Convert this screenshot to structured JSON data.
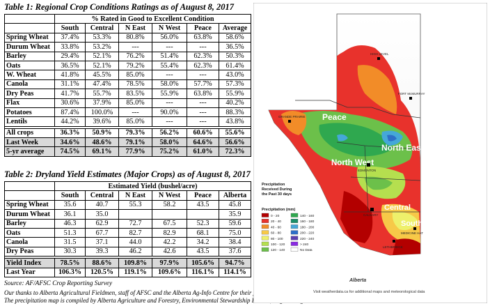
{
  "table1": {
    "title": "Table 1: Regional Crop Conditions Ratings as of August 8, 2017",
    "group_header": "% Rated in Good to Excellent Condition",
    "columns": [
      "South",
      "Central",
      "N East",
      "N West",
      "Peace",
      "Average"
    ],
    "rows": [
      {
        "crop": "Spring Wheat",
        "values": [
          "37.4%",
          "53.3%",
          "80.8%",
          "56.0%",
          "63.8%",
          "58.6%"
        ]
      },
      {
        "crop": "Durum Wheat",
        "values": [
          "33.8%",
          "53.2%",
          "---",
          "---",
          "---",
          "36.5%"
        ]
      },
      {
        "crop": "Barley",
        "values": [
          "29.4%",
          "52.1%",
          "76.2%",
          "51.4%",
          "62.3%",
          "50.3%"
        ]
      },
      {
        "crop": "Oats",
        "values": [
          "36.5%",
          "52.1%",
          "79.2%",
          "55.4%",
          "62.3%",
          "61.4%"
        ]
      },
      {
        "crop": "W. Wheat",
        "values": [
          "41.8%",
          "45.5%",
          "85.0%",
          "---",
          "---",
          "43.0%"
        ]
      },
      {
        "crop": "Canola",
        "values": [
          "31.1%",
          "47.4%",
          "78.5%",
          "58.0%",
          "57.7%",
          "57.3%"
        ]
      },
      {
        "crop": "Dry Peas",
        "values": [
          "41.7%",
          "55.7%",
          "83.5%",
          "55.9%",
          "63.8%",
          "55.9%"
        ]
      },
      {
        "crop": "Flax",
        "values": [
          "30.6%",
          "37.9%",
          "85.0%",
          "---",
          "---",
          "40.2%"
        ]
      },
      {
        "crop": "Potatoes",
        "values": [
          "87.4%",
          "100.0%",
          "---",
          "90.0%",
          "---",
          "88.3%"
        ]
      },
      {
        "crop": "Lentils",
        "values": [
          "44.2%",
          "39.6%",
          "85.0%",
          "---",
          "---",
          "43.8%"
        ]
      }
    ],
    "summary": [
      {
        "crop": "All crops",
        "values": [
          "36.3%",
          "50.9%",
          "79.3%",
          "56.2%",
          "60.6%",
          "55.6%"
        ],
        "shaded": false
      },
      {
        "crop": "Last Week",
        "values": [
          "34.6%",
          "48.6%",
          "79.1%",
          "58.0%",
          "64.6%",
          "56.6%"
        ],
        "shaded": true
      },
      {
        "crop": "5-yr average",
        "values": [
          "74.5%",
          "69.1%",
          "77.9%",
          "75.2%",
          "61.0%",
          "72.3%"
        ],
        "shaded": true
      }
    ]
  },
  "table2": {
    "title": "Table 2: Dryland Yield Estimates (Major Crops) as of August 8, 2017",
    "group_header": "Estimated Yield (bushel/acre)",
    "columns": [
      "South",
      "Central",
      "N East",
      "N West",
      "Peace",
      "Alberta"
    ],
    "rows": [
      {
        "crop": "Spring Wheat",
        "values": [
          "35.6",
          "40.7",
          "55.3",
          "58.2",
          "43.5",
          "45.8"
        ]
      },
      {
        "crop": "Durum Wheat",
        "values": [
          "36.1",
          "35.0",
          "",
          "",
          "",
          "35.9"
        ]
      },
      {
        "crop": "Barley",
        "values": [
          "46.3",
          "62.9",
          "72.7",
          "67.5",
          "52.3",
          "59.6"
        ]
      },
      {
        "crop": "Oats",
        "values": [
          "51.3",
          "67.7",
          "82.7",
          "82.9",
          "68.1",
          "75.0"
        ]
      },
      {
        "crop": "Canola",
        "values": [
          "31.5",
          "37.1",
          "44.0",
          "42.2",
          "34.2",
          "38.4"
        ]
      },
      {
        "crop": "Dry Peas",
        "values": [
          "30.3",
          "39.3",
          "46.2",
          "42.6",
          "43.5",
          "37.6"
        ]
      }
    ],
    "summary": [
      {
        "crop": "Yield Index",
        "values": [
          "78.5%",
          "88.6%",
          "109.8%",
          "97.9%",
          "105.6%",
          "94.7%"
        ],
        "shaded": true
      },
      {
        "crop": "Last Year",
        "values": [
          "106.3%",
          "120.5%",
          "119.1%",
          "109.6%",
          "116.1%",
          "114.1%"
        ],
        "shaded": false
      }
    ]
  },
  "footer": {
    "source": "Source: AF/AFSC Crop Reporting Survey",
    "thanks_line1": "Our thanks to Alberta Agricultural Fieldmen, staff of AFSC and the Alberta Ag-Info Centre for their partnership and contribution to the Alberta Crop Reporting Program.",
    "thanks_line2": "The precipitation map is compiled by Alberta Agriculture and Forestry, Environmental Stewardship Branch, Engineering and Climate Services Section."
  },
  "map": {
    "region_labels": {
      "peace": "Peace",
      "north_east": "North East",
      "north_west": "North West",
      "central": "Central",
      "south": "South"
    },
    "cities": {
      "high_level": "HIGH LEVEL",
      "fort_mcmurray": "FORT McMURRAY",
      "grande_prairie": "GRANDE PRAIRIE",
      "edmonton": "EDMONTON",
      "calgary": "CALGARY",
      "lethbridge": "LETHBRIDGE",
      "medicine_hat": "MEDICINE HAT"
    },
    "title_line1": "Precipitation",
    "title_line2": "Received During",
    "title_line3": "the Past 30 days",
    "legend_title": "Precipitation (mm)",
    "legend": [
      {
        "label": "0 - 20",
        "color": "#b30000"
      },
      {
        "label": "20 - 40",
        "color": "#e8322c"
      },
      {
        "label": "40 - 60",
        "color": "#f28c28"
      },
      {
        "label": "60 - 80",
        "color": "#f7c948"
      },
      {
        "label": "80 - 100",
        "color": "#eef06b"
      },
      {
        "label": "100 - 120",
        "color": "#b5df4f"
      },
      {
        "label": "120 - 140",
        "color": "#6cc04a"
      },
      {
        "label": "140 - 160",
        "color": "#2fa84f"
      },
      {
        "label": "160 - 180",
        "color": "#1b8f6a"
      },
      {
        "label": "180 - 200",
        "color": "#45a8d8"
      },
      {
        "label": "200 - 220",
        "color": "#2e6fc7"
      },
      {
        "label": "220 - 240",
        "color": "#5b3fb0"
      },
      {
        "label": "> 240",
        "color": "#8a2be2"
      },
      {
        "label": "No Data",
        "color": "#ffffff"
      }
    ],
    "website": "Visit weatherdata.ca for additional maps and meteorological data",
    "agency": "Alberta"
  }
}
